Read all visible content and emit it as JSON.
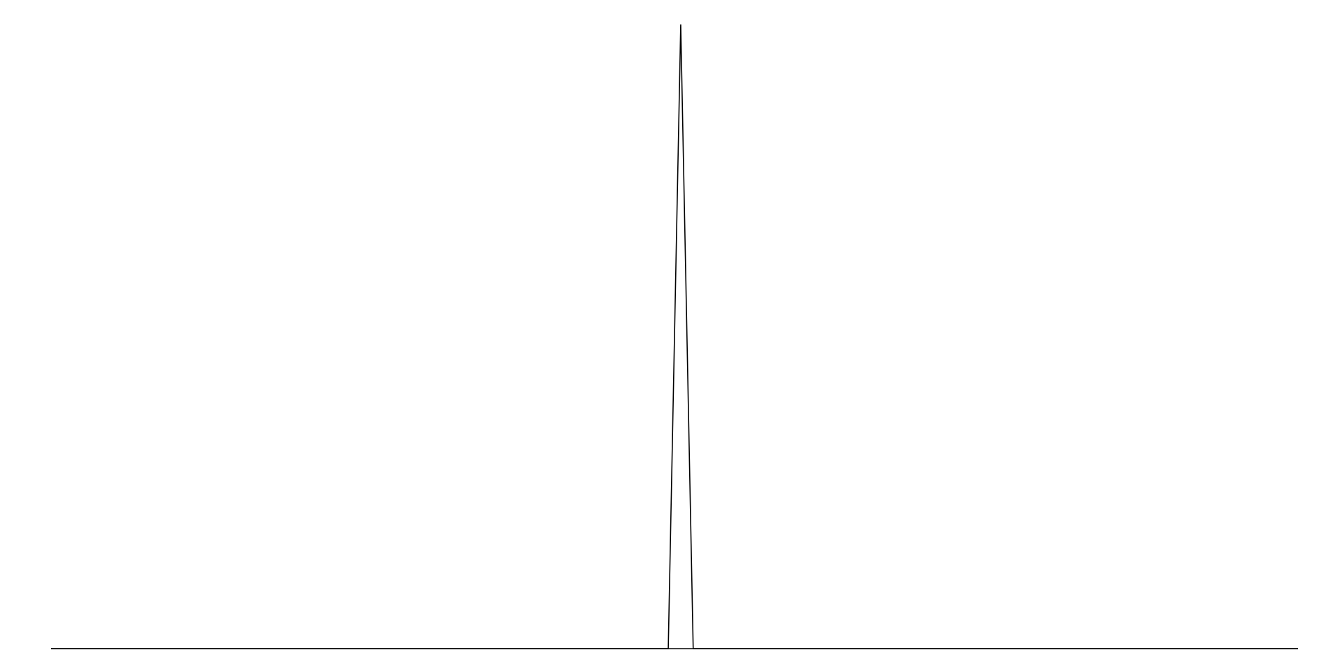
{
  "chart_data": {
    "type": "line",
    "title": "",
    "xlabel": "",
    "ylabel": "",
    "grid": false,
    "legend": "none",
    "x_axis_visible": true,
    "y_axis_visible": false,
    "xlim": [
      0,
      100
    ],
    "ylim": [
      0,
      100
    ],
    "line_color": "#000000",
    "background": "#ffffff",
    "series": [
      {
        "x": [
          0,
          49.5,
          50.5,
          51.5,
          100
        ],
        "y": [
          0,
          0,
          100,
          0,
          0
        ]
      }
    ]
  }
}
